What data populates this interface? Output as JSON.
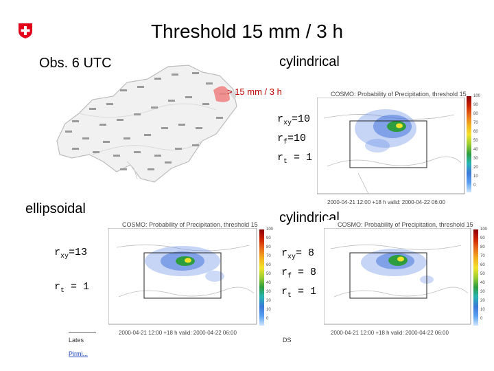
{
  "title": "Threshold 15 mm / 3 h",
  "obs_label": "Obs. 6 UTC",
  "legend_label": "> 15 mm / 3 h",
  "top_right": {
    "section_label": "cylindrical",
    "params": [
      "r",
      "=10",
      "r",
      "=10",
      "r",
      " = 1"
    ],
    "panel_title": "COSMO: Probability of Precipitation, threshold 15",
    "footer": "2000-04-21 12:00 +18 h   valid: 2000-04-22 06:00"
  },
  "bottom_left": {
    "section_label": "ellipsoidal",
    "params": [
      "r",
      "=13",
      "r",
      " = 1"
    ],
    "panel_title": "COSMO: Probability of Precipitation, threshold 15",
    "footer": "2000-04-21 12:00 +18 h   valid: 2000-04-22 06:00"
  },
  "bottom_right": {
    "section_label": "cylindrical",
    "params": [
      "r",
      "= 8",
      "r",
      " = 8",
      "r",
      " = 1"
    ],
    "panel_title": "COSMO: Probability of Precipitation, threshold 15",
    "footer": "2000-04-21 12:00 +18 h   valid: 2000-04-22 06:00"
  },
  "subscripts": {
    "xy": "xy",
    "f": "f",
    "t": "t"
  },
  "colorbar_ticks": [
    "100",
    "90",
    "80",
    "70",
    "60",
    "50",
    "40",
    "30",
    "20",
    "10",
    "0"
  ],
  "colorbar_colors": [
    "#8b0000",
    "#cc2200",
    "#e86b1a",
    "#f2b01e",
    "#f3e32a",
    "#9acd32",
    "#2e9d3f",
    "#25b4b4",
    "#3a78d8",
    "#5aa0f0",
    "#d0e6ff"
  ],
  "footnote_left": "Lates",
  "footnote_right": "DS",
  "footnote_link": "Pirmi...",
  "logo": "swiss-cross-icon",
  "colors": {
    "logo_red": "#e3001b",
    "link": "#1a3fbf"
  }
}
